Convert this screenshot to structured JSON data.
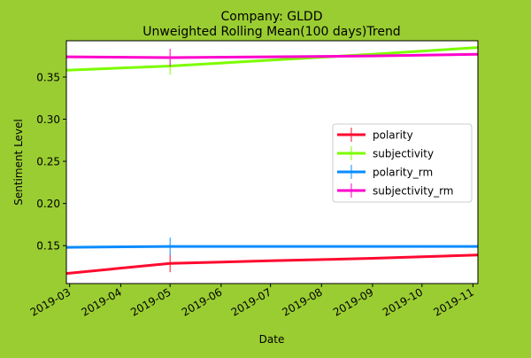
{
  "chart_data": {
    "type": "line",
    "title_line1": "Company: GLDD",
    "title_line2": "Unweighted Rolling Mean(100 days)Trend",
    "xlabel": "Date",
    "ylabel": "Sentiment Level",
    "x_ticks": [
      "2019-03-01",
      "2019-04-01",
      "2019-05-01",
      "2019-06-01",
      "2019-07-01",
      "2019-08-01",
      "2019-09-01",
      "2019-10-01",
      "2019-11-01"
    ],
    "x_tick_labels": [
      "2019-03",
      "2019-04",
      "2019-05",
      "2019-06",
      "2019-07",
      "2019-08",
      "2019-09",
      "2019-10",
      "2019-11"
    ],
    "xlim": [
      "2019-02-27",
      "2019-11-04"
    ],
    "y_ticks": [
      0.15,
      0.2,
      0.25,
      0.3,
      0.35
    ],
    "y_tick_labels": [
      "0.15",
      "0.20",
      "0.25",
      "0.30",
      "0.35"
    ],
    "ylim": [
      0.105,
      0.393
    ],
    "grid": false,
    "legend_position": "center-right",
    "series": [
      {
        "name": "polarity",
        "color": "#ff0a2f",
        "points": [
          [
            "2019-02-27",
            0.117
          ],
          [
            "2019-05-01",
            0.129
          ],
          [
            "2019-07-01",
            0.132
          ],
          [
            "2019-09-01",
            0.135
          ],
          [
            "2019-11-04",
            0.139
          ]
        ]
      },
      {
        "name": "subjectivity",
        "color": "#7cfc00",
        "points": [
          [
            "2019-02-27",
            0.358
          ],
          [
            "2019-05-01",
            0.363
          ],
          [
            "2019-07-01",
            0.37
          ],
          [
            "2019-09-01",
            0.377
          ],
          [
            "2019-11-04",
            0.385
          ]
        ]
      },
      {
        "name": "polarity_rm",
        "color": "#0a8cff",
        "points": [
          [
            "2019-02-27",
            0.148
          ],
          [
            "2019-05-01",
            0.149
          ],
          [
            "2019-07-01",
            0.149
          ],
          [
            "2019-09-01",
            0.149
          ],
          [
            "2019-11-04",
            0.149
          ]
        ]
      },
      {
        "name": "subjectivity_rm",
        "color": "#ff00cc",
        "points": [
          [
            "2019-02-27",
            0.374
          ],
          [
            "2019-05-01",
            0.373
          ],
          [
            "2019-07-01",
            0.374
          ],
          [
            "2019-09-01",
            0.375
          ],
          [
            "2019-11-04",
            0.377
          ]
        ]
      }
    ],
    "markers": [
      {
        "series": "polarity",
        "date": "2019-05-01",
        "value": 0.129
      },
      {
        "series": "subjectivity",
        "date": "2019-05-01",
        "value": 0.363
      },
      {
        "series": "polarity_rm",
        "date": "2019-05-01",
        "value": 0.149
      },
      {
        "series": "subjectivity_rm",
        "date": "2019-05-01",
        "value": 0.373
      }
    ]
  }
}
